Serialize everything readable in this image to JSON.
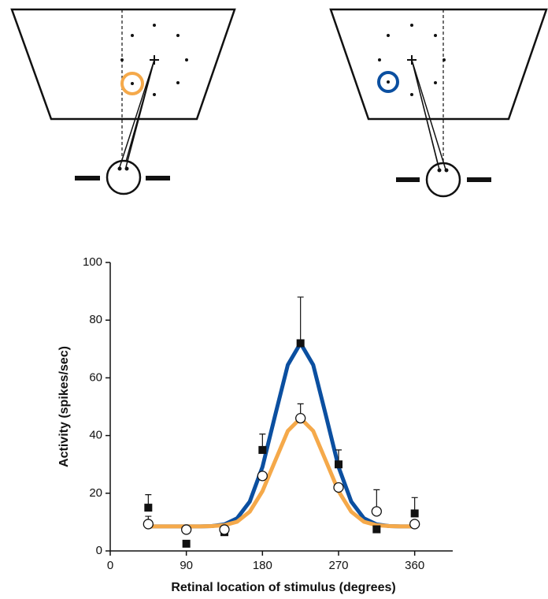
{
  "chart_data": {
    "type": "scatter",
    "x_label": "Retinal location of stimulus (degrees)",
    "y_label": "Activity (spikes/sec)",
    "xlim": [
      0,
      405
    ],
    "xticks": [
      0,
      90,
      180,
      270,
      360
    ],
    "ylim": [
      0,
      100
    ],
    "yticks": [
      0,
      20,
      40,
      60,
      80,
      100
    ],
    "series": [
      {
        "marker": "square",
        "color": "#111111",
        "x": [
          45,
          90,
          135,
          180,
          225,
          270,
          315,
          360
        ],
        "values": [
          15,
          2.5,
          6.5,
          35,
          72,
          30,
          7.5,
          13
        ],
        "errors": [
          4.5,
          null,
          null,
          5.5,
          16,
          5,
          null,
          5.5
        ]
      },
      {
        "marker": "circle",
        "color": "#111111",
        "x": [
          45,
          90,
          135,
          180,
          225,
          270,
          315,
          360
        ],
        "values": [
          9.3,
          7.4,
          7.4,
          26,
          46,
          22,
          13.7,
          9.3
        ],
        "errors": [
          2.7,
          null,
          null,
          null,
          5,
          null,
          7.5,
          null
        ]
      }
    ],
    "curves": [
      {
        "color": "#0b4fa0",
        "x": [
          45,
          60,
          75,
          90,
          105,
          120,
          135,
          150,
          165,
          180,
          195,
          210,
          225,
          240,
          255,
          270,
          285,
          300,
          315,
          330,
          345,
          360
        ],
        "values": [
          8.5,
          8.5,
          8.5,
          8.5,
          8.5,
          8.6,
          9.2,
          11.3,
          17.1,
          29.1,
          47.0,
          64.5,
          72,
          64.5,
          47.0,
          29.1,
          17.1,
          11.3,
          9.2,
          8.6,
          8.5,
          8.5
        ]
      },
      {
        "color": "#f5a94a",
        "x": [
          45,
          60,
          75,
          90,
          105,
          120,
          135,
          150,
          165,
          180,
          195,
          210,
          225,
          240,
          255,
          270,
          285,
          300,
          315,
          330,
          345,
          360
        ],
        "values": [
          8.5,
          8.5,
          8.5,
          8.5,
          8.5,
          8.6,
          8.9,
          10.1,
          13.6,
          20.7,
          31.2,
          41.6,
          46,
          41.6,
          31.2,
          20.7,
          13.6,
          10.1,
          8.9,
          8.6,
          8.5,
          8.5
        ]
      }
    ]
  }
}
